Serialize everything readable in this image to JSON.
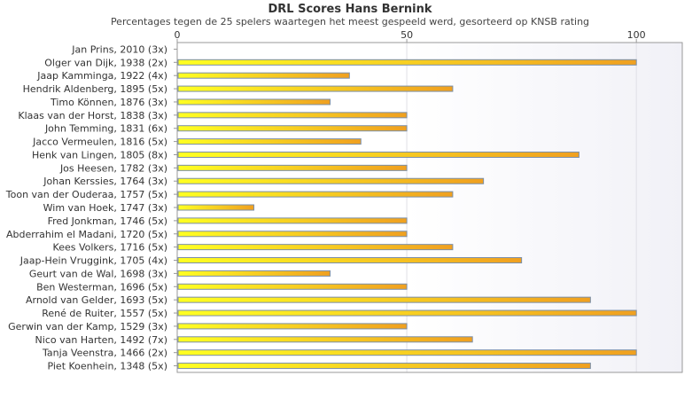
{
  "chart_data": {
    "type": "bar",
    "orientation": "horizontal",
    "title": "DRL Scores Hans Bernink",
    "subtitle": "Percentages tegen de 25 spelers waartegen het meest gespeeld werd, gesorteerd op KNSB rating",
    "xlim": [
      0,
      110
    ],
    "x_ticks": [
      0,
      50,
      100
    ],
    "grid": true,
    "colors": {
      "bar_start": "#ffff22",
      "bar_end": "#f0a020",
      "bar_edge": "#7b8fa8"
    },
    "categories": [
      "Jan Prins, 2010 (3x)",
      "Olger van Dijk, 1938 (2x)",
      "Jaap Kamminga, 1922 (4x)",
      "Hendrik Aldenberg, 1895 (5x)",
      "Timo Können, 1876 (3x)",
      "Klaas van der Horst, 1838 (3x)",
      "John Temming, 1831 (6x)",
      "Jacco Vermeulen, 1816 (5x)",
      "Henk van Lingen, 1805 (8x)",
      "Jos Heesen, 1782 (3x)",
      "Johan Kerssies, 1764 (3x)",
      "Toon van der Ouderaa, 1757 (5x)",
      "Wim van Hoek, 1747 (3x)",
      "Fred Jonkman, 1746 (5x)",
      "Abderrahim el Madani, 1720 (5x)",
      "Kees Volkers, 1716 (5x)",
      "Jaap-Hein Vruggink, 1705 (4x)",
      "Geurt van de Wal, 1698 (3x)",
      "Ben Westerman, 1696 (5x)",
      "Arnold van Gelder, 1693 (5x)",
      "René de Ruiter, 1557 (5x)",
      "Gerwin van der Kamp, 1529 (3x)",
      "Nico van Harten, 1492 (7x)",
      "Tanja Veenstra, 1466 (2x)",
      "Piet Koenhein, 1348 (5x)"
    ],
    "values": [
      0,
      100,
      37.5,
      60,
      33.3,
      50,
      50,
      40,
      87.5,
      50,
      66.7,
      60,
      16.7,
      50,
      50,
      60,
      75,
      33.3,
      50,
      90,
      100,
      50,
      64.3,
      100,
      90
    ]
  }
}
